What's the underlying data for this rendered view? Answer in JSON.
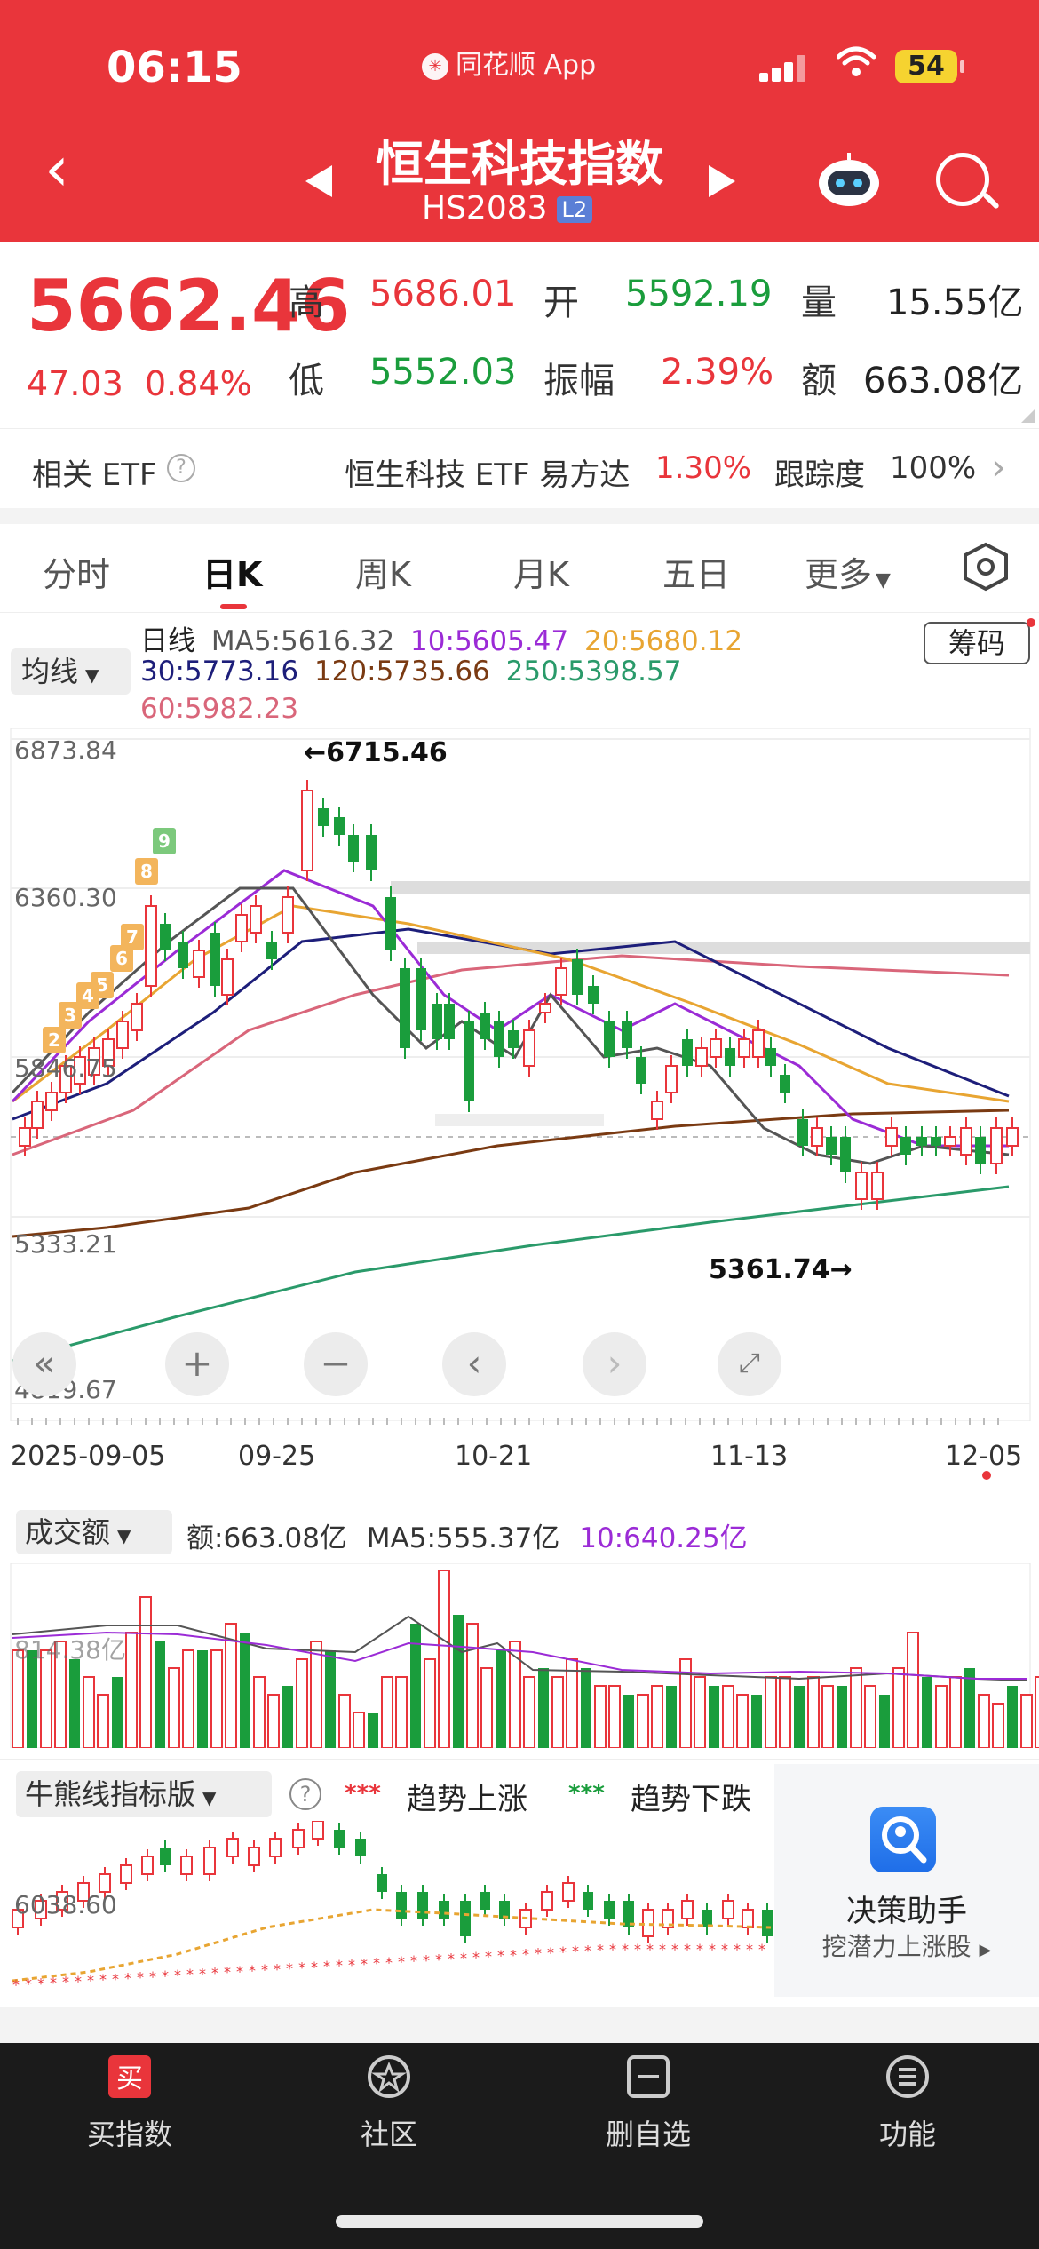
{
  "status_bar": {
    "time": "06:15",
    "app": "同花顺 App",
    "battery": "54"
  },
  "header": {
    "title": "恒生科技指数",
    "code": "HS2083",
    "badge": "L2"
  },
  "quote": {
    "price": "5662.46",
    "change": "47.03",
    "change_pct": "0.84%",
    "high_label": "高",
    "high": "5686.01",
    "open_label": "开",
    "open": "5592.19",
    "volume_label": "量",
    "volume": "15.55亿",
    "low_label": "低",
    "low": "5552.03",
    "amplitude_label": "振幅",
    "amplitude": "2.39%",
    "amount_label": "额",
    "amount": "663.08亿"
  },
  "etf": {
    "label": "相关 ETF",
    "name": "恒生科技 ETF 易方达",
    "pct": "1.30%",
    "track_label": "跟踪度",
    "track": "100%"
  },
  "tabs": [
    "分时",
    "日K",
    "周K",
    "月K",
    "五日",
    "更多"
  ],
  "ma_panel": {
    "select": "均线",
    "period": "日线",
    "ma5": "MA5:5616.32",
    "ma10": "10:5605.47",
    "ma20": "20:5680.12",
    "ma30": "30:5773.16",
    "ma120": "120:5735.66",
    "ma250": "250:5398.57",
    "ma60": "60:5982.23",
    "chip_button": "筹码"
  },
  "price_axis": [
    "6873.84",
    "6360.30",
    "5846.75",
    "5333.21",
    "4819.67"
  ],
  "annotations": {
    "high": "←6715.46",
    "low": "5361.74→"
  },
  "dates": [
    "2025-09-05",
    "09-25",
    "10-21",
    "11-13",
    "12-05"
  ],
  "tail_marks": [
    "9",
    "8",
    "7",
    "6",
    "5",
    "4",
    "3",
    "2"
  ],
  "volume": {
    "select": "成交额",
    "amount": "额:663.08亿",
    "ma5": "MA5:555.37亿",
    "ma10": "10:640.25亿",
    "axis_label": "814.38亿"
  },
  "indicator": {
    "select": "牛熊线指标版",
    "up_label": "趋势上涨",
    "down_label": "趋势下跌",
    "axis_label": "6038.60"
  },
  "assistant": {
    "title": "决策助手",
    "subtitle": "挖潜力上涨股"
  },
  "bottom_nav": [
    {
      "label": "买指数",
      "icon": "买"
    },
    {
      "label": "社区",
      "icon": ""
    },
    {
      "label": "删自选",
      "icon": ""
    },
    {
      "label": "功能",
      "icon": ""
    }
  ],
  "colors": {
    "up": "#e9353b",
    "down": "#1a9d3c",
    "header": "#e9353b",
    "ma5": "#555555",
    "ma10": "#9b2bd6",
    "ma20": "#e8a532",
    "ma30": "#1d1e7a",
    "ma60": "#d9667a",
    "ma120": "#7a3a12",
    "ma250": "#2a9a6a"
  }
}
